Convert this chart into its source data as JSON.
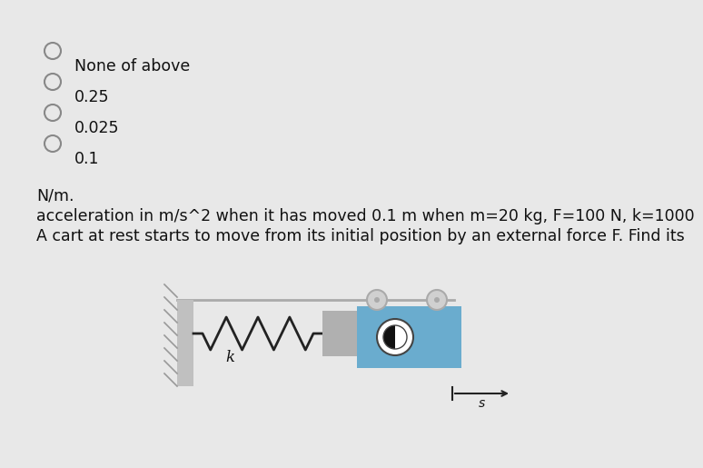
{
  "bg_color": "#e8e8e8",
  "wall_color": "#c0c0c0",
  "wall_hatch_color": "#999999",
  "ground_color": "#aaaaaa",
  "spring_color": "#222222",
  "connector_color": "#b0b0b0",
  "cart_color": "#6aacce",
  "wheel_color": "#aaaaaa",
  "wheel_face": "#d0d0d0",
  "arrow_color": "#222222",
  "text_color": "#111111",
  "label_k": "k",
  "label_s": "s",
  "question_lines": [
    "A cart at rest starts to move from its initial position by an external force F. Find its",
    "acceleration in m/s^2 when it has moved 0.1 m when m=20 kg, F=100 N, k=1000",
    "N/m."
  ],
  "options": [
    "0.1",
    "0.025",
    "0.25",
    "None of above"
  ],
  "q_fontsize": 12.5,
  "opt_fontsize": 12.5
}
